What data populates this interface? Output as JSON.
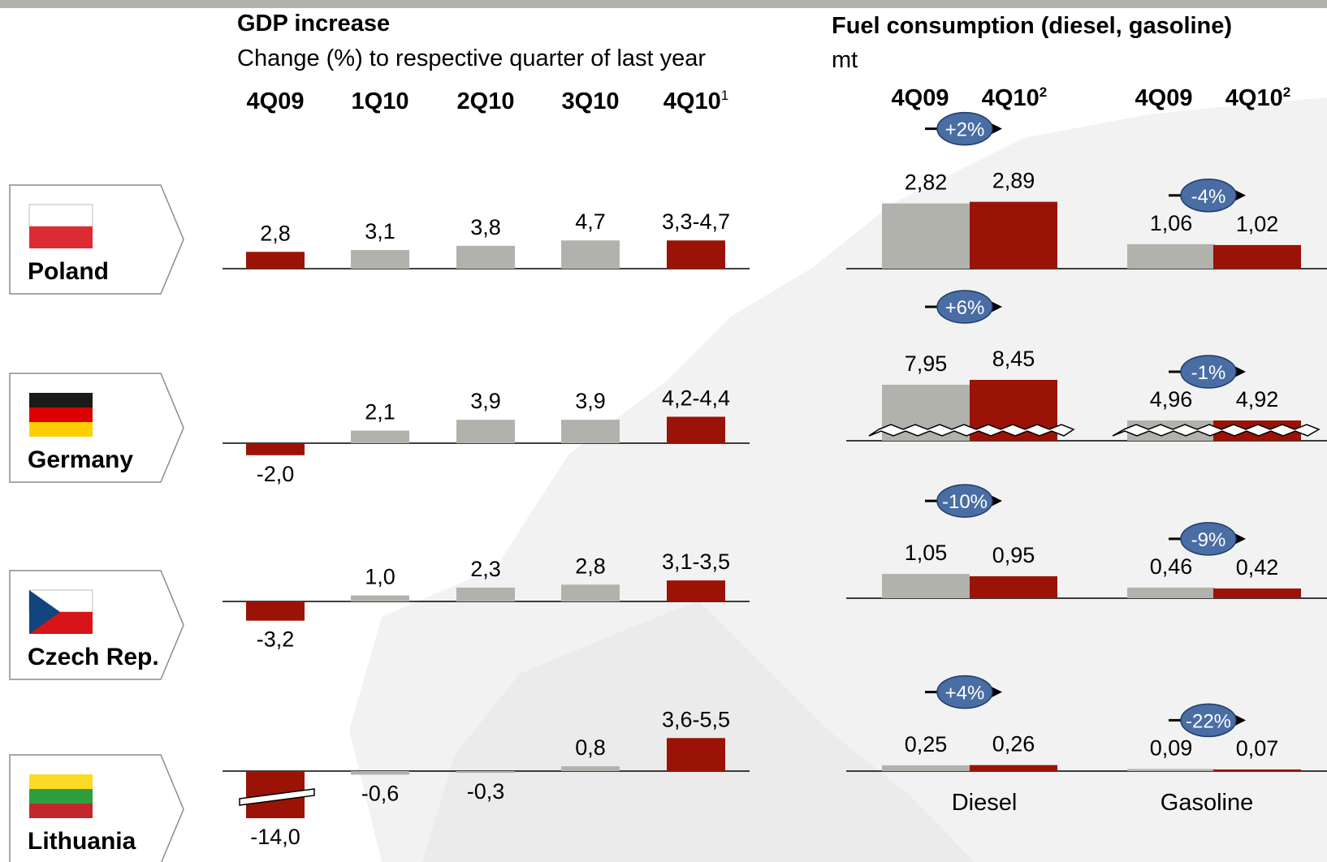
{
  "colors": {
    "highlight": "#9b1306",
    "neutral": "#b2b2ad",
    "badge": "#4a6da4",
    "axis": "#000000",
    "map": "#f2f2f2"
  },
  "countries": [
    {
      "name": "Poland",
      "flag": "poland-flag-icon"
    },
    {
      "name": "Germany",
      "flag": "germany-flag-icon"
    },
    {
      "name": "Czech Rep.",
      "flag": "czech-flag-icon"
    },
    {
      "name": "Lithuania",
      "flag": "lithuania-flag-icon"
    }
  ],
  "chart_data": [
    {
      "type": "bar",
      "title": "GDP increase",
      "subtitle": "Change (%) to respective quarter of last year",
      "categories": [
        "4Q09",
        "1Q10",
        "2Q10",
        "3Q10",
        "4Q10"
      ],
      "category_footnotes": [
        "",
        "",
        "",
        "",
        "1"
      ],
      "highlighted_categories": [
        "4Q09",
        "4Q10"
      ],
      "series": [
        {
          "name": "Poland",
          "values": [
            2.8,
            3.1,
            3.8,
            4.7,
            [
              3.3,
              4.7
            ]
          ],
          "labels": [
            "2,8",
            "3,1",
            "3,8",
            "4,7",
            "3,3-4,7"
          ]
        },
        {
          "name": "Germany",
          "values": [
            -2.0,
            2.1,
            3.9,
            3.9,
            [
              4.2,
              4.4
            ]
          ],
          "labels": [
            "-2,0",
            "2,1",
            "3,9",
            "3,9",
            "4,2-4,4"
          ]
        },
        {
          "name": "Czech Rep.",
          "values": [
            -3.2,
            1.0,
            2.3,
            2.8,
            [
              3.1,
              3.5
            ]
          ],
          "labels": [
            "-3,2",
            "1,0",
            "2,3",
            "2,8",
            "3,1-3,5"
          ]
        },
        {
          "name": "Lithuania",
          "values": [
            -14.0,
            -0.6,
            -0.3,
            0.8,
            [
              3.6,
              5.5
            ]
          ],
          "labels": [
            "-14,0",
            "-0,6",
            "-0,3",
            "0,8",
            "3,6-5,5"
          ],
          "axis_break_on": [
            "4Q09"
          ]
        }
      ]
    },
    {
      "type": "bar",
      "title": "Fuel consumption (diesel, gasoline)",
      "subtitle": "mt",
      "categories": [
        "Diesel",
        "Gasoline"
      ],
      "periods": [
        "4Q09",
        "4Q10"
      ],
      "period_footnotes": [
        "",
        "2"
      ],
      "series": [
        {
          "name": "Poland",
          "diesel": [
            2.82,
            2.89
          ],
          "gasoline": [
            1.06,
            1.02
          ],
          "diesel_labels": [
            "2,82",
            "2,89"
          ],
          "gasoline_labels": [
            "1,06",
            "1,02"
          ],
          "diesel_change": "+2%",
          "gasoline_change": "-4%"
        },
        {
          "name": "Germany",
          "diesel": [
            7.95,
            8.45
          ],
          "gasoline": [
            4.96,
            4.92
          ],
          "diesel_labels": [
            "7,95",
            "8,45"
          ],
          "gasoline_labels": [
            "4,96",
            "4,92"
          ],
          "diesel_change": "+6%",
          "gasoline_change": "-1%",
          "axis_break": true
        },
        {
          "name": "Czech Rep.",
          "diesel": [
            1.05,
            0.95
          ],
          "gasoline": [
            0.46,
            0.42
          ],
          "diesel_labels": [
            "1,05",
            "0,95"
          ],
          "gasoline_labels": [
            "0,46",
            "0,42"
          ],
          "diesel_change": "-10%",
          "gasoline_change": "-9%"
        },
        {
          "name": "Lithuania",
          "diesel": [
            0.25,
            0.26
          ],
          "gasoline": [
            0.09,
            0.07
          ],
          "diesel_labels": [
            "0,25",
            "0,26"
          ],
          "gasoline_labels": [
            "0,09",
            "0,07"
          ],
          "diesel_change": "+4%",
          "gasoline_change": "-22%"
        }
      ]
    }
  ]
}
